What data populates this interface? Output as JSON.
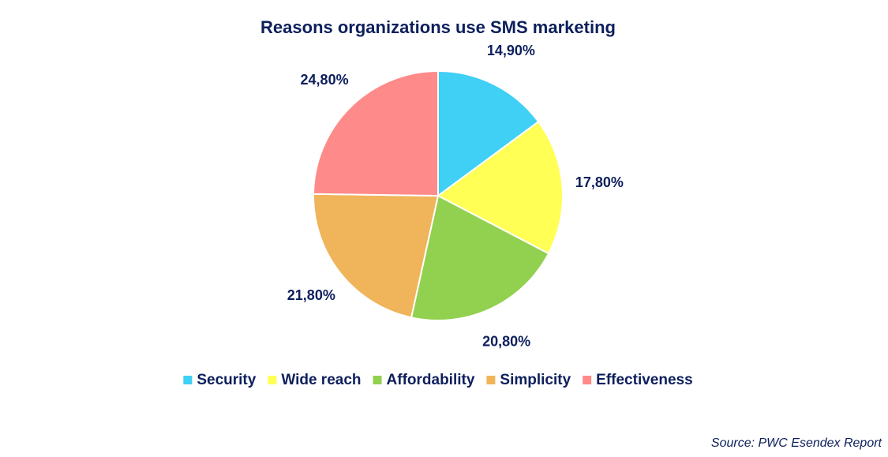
{
  "chart_data": {
    "type": "pie",
    "title": "Reasons organizations use SMS marketing",
    "categories": [
      "Security",
      "Wide reach",
      "Affordability",
      "Simplicity",
      "Effectiveness"
    ],
    "values": [
      14.9,
      17.8,
      20.8,
      21.8,
      24.8
    ],
    "value_labels": [
      "14,90%",
      "17,80%",
      "20,80%",
      "21,80%",
      "24,80%"
    ],
    "colors": [
      "#40cff5",
      "#ffff55",
      "#92d050",
      "#f0b45a",
      "#ff8a8a"
    ],
    "legend": "bottom",
    "source": "Source: PWC Esendex Report"
  }
}
